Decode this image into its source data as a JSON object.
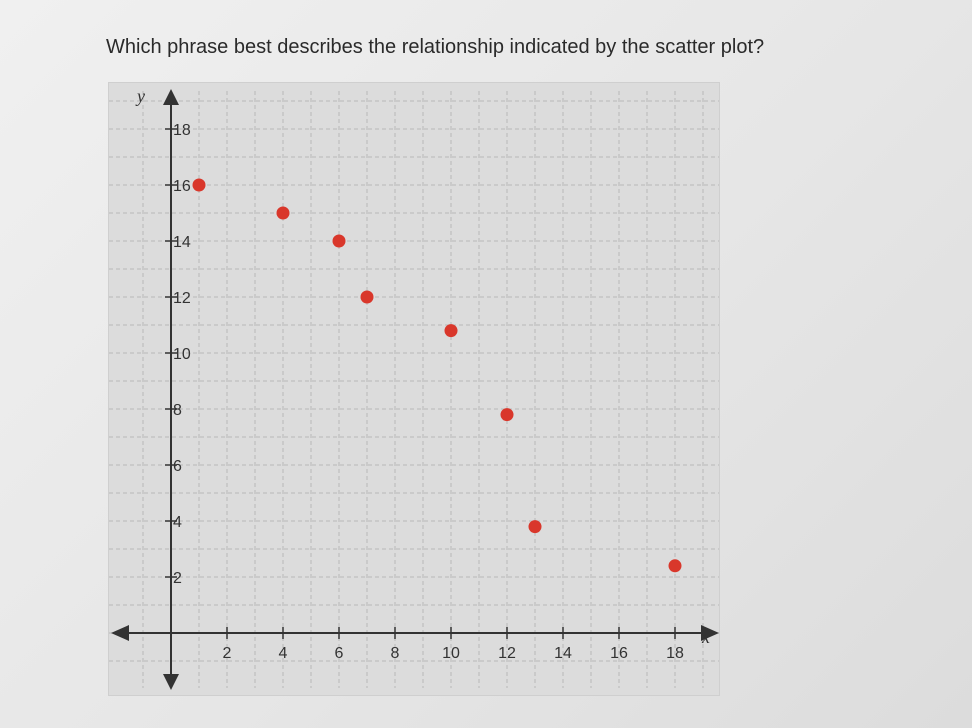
{
  "question": {
    "text": "Which phrase best describes the relationship indicated by the scatter plot?"
  },
  "colors": {
    "point": "#d9372b",
    "axis": "#333333",
    "grid": "#b7b7b7",
    "background": "#dcdcdc"
  },
  "chart_data": {
    "type": "scatter",
    "title": "",
    "xlabel": "x",
    "ylabel": "y",
    "xlim": [
      -2,
      19
    ],
    "ylim": [
      -2,
      19
    ],
    "grid": true,
    "x_ticks": [
      2,
      4,
      6,
      8,
      10,
      12,
      14,
      16,
      18
    ],
    "y_ticks": [
      2,
      4,
      6,
      8,
      10,
      12,
      14,
      16,
      18
    ],
    "points": [
      {
        "x": 1,
        "y": 16
      },
      {
        "x": 4,
        "y": 15
      },
      {
        "x": 6,
        "y": 14
      },
      {
        "x": 7,
        "y": 12
      },
      {
        "x": 10,
        "y": 10.8
      },
      {
        "x": 12,
        "y": 7.8
      },
      {
        "x": 13,
        "y": 3.8
      },
      {
        "x": 18,
        "y": 2.4
      }
    ]
  }
}
